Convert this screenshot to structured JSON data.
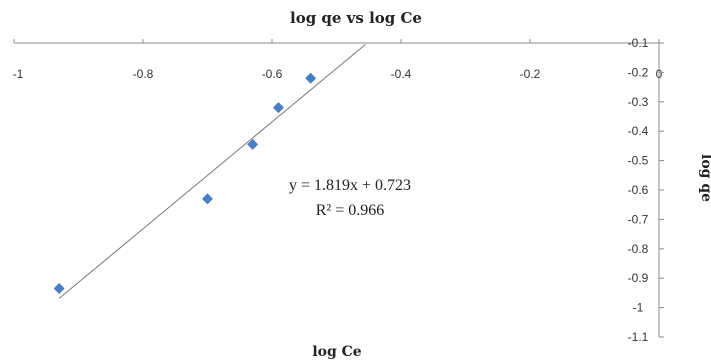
{
  "chart_data": {
    "type": "scatter",
    "title": "log qe vs log Ce",
    "xlabel": "log Ce",
    "ylabel": "log qe",
    "xlim": [
      -1,
      0
    ],
    "ylim": [
      -1.1,
      -0.1
    ],
    "x_ticks": [
      -1,
      -0.8,
      -0.6,
      -0.4,
      -0.2,
      0
    ],
    "x_tick_labels": [
      "-1",
      "-0.8",
      "-0.6",
      "-0.4",
      "-0.2",
      "0"
    ],
    "y_ticks": [
      -0.1,
      -0.2,
      -0.3,
      -0.4,
      -0.5,
      -0.6,
      -0.7,
      -0.8,
      -0.9,
      -1,
      -1.1
    ],
    "y_tick_labels": [
      "-0.1",
      "-0.2",
      "-0.3",
      "-0.4",
      "-0.5",
      "-0.6",
      "-0.7",
      "-0.8",
      "-0.9",
      "-1",
      "-1.1"
    ],
    "points": [
      {
        "x": -0.93,
        "y": -0.935
      },
      {
        "x": -0.7,
        "y": -0.63
      },
      {
        "x": -0.63,
        "y": -0.445
      },
      {
        "x": -0.59,
        "y": -0.32
      },
      {
        "x": -0.54,
        "y": -0.22
      }
    ],
    "trendline": {
      "slope": 1.819,
      "intercept": 0.723,
      "x_range": [
        -0.93,
        -0.455
      ]
    },
    "equation": "y = 1.819x + 0.723",
    "r_squared": "R² = 0.966",
    "grid": false,
    "marker_color": "#4a7ec4",
    "line_color": "#777777"
  }
}
